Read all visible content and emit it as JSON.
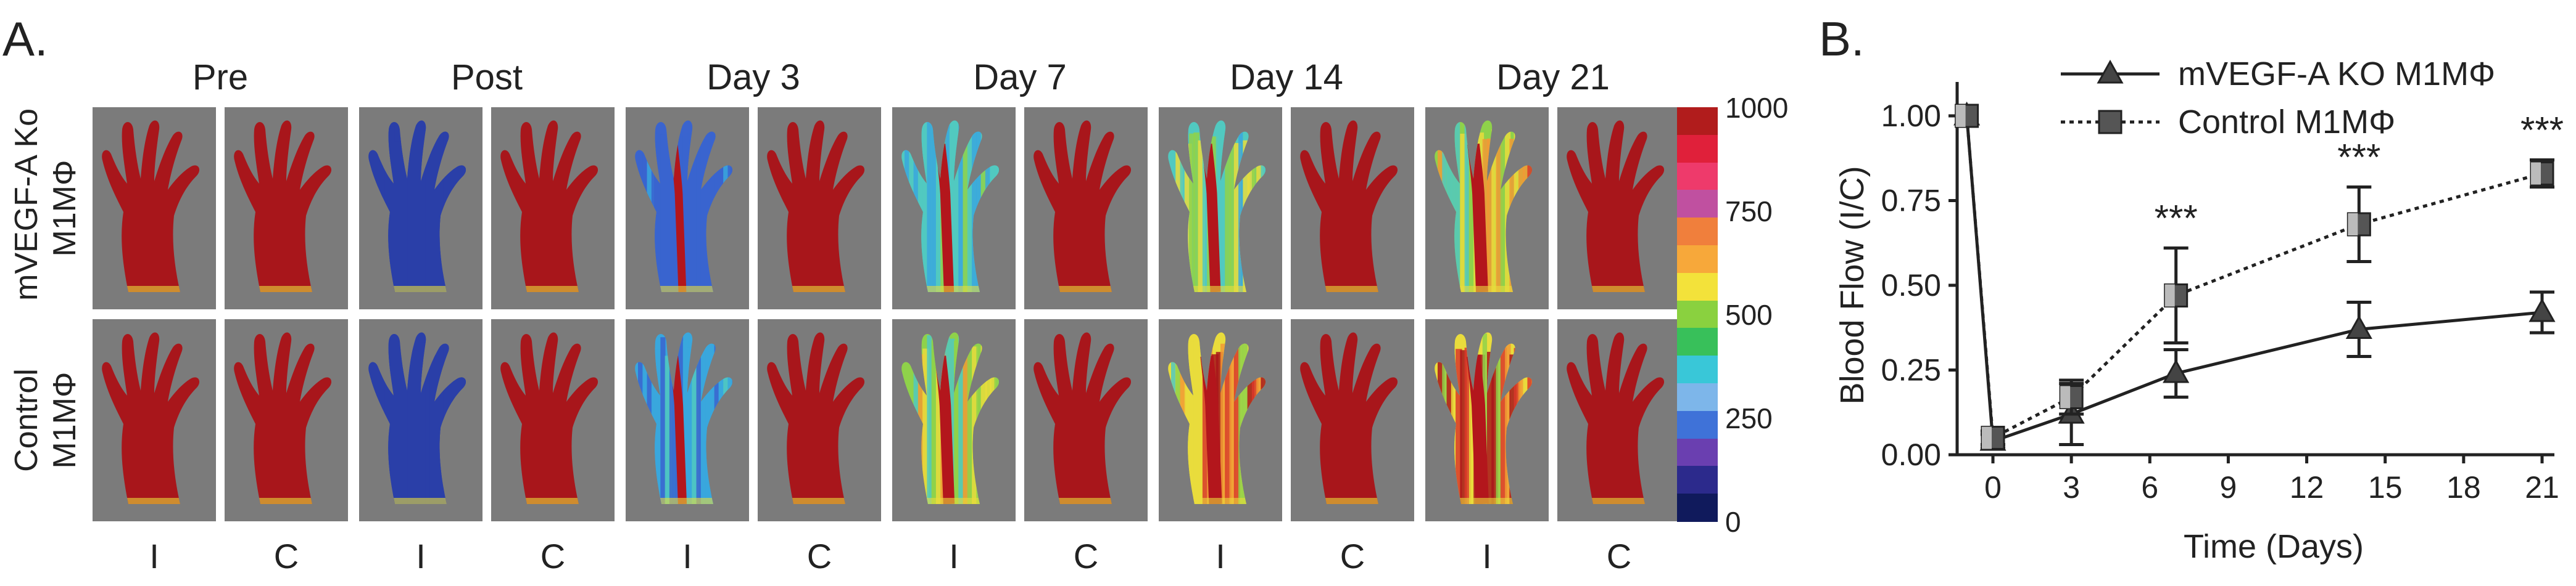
{
  "panel_a": {
    "letter": "A.",
    "columns": [
      "Pre",
      "Post",
      "Day 3",
      "Day 7",
      "Day 14",
      "Day 21"
    ],
    "rows": [
      {
        "label_line1": "mVEGF-A Ko",
        "label_line2": "M1MΦ"
      },
      {
        "label_line1": "Control",
        "label_line2": "M1MΦ"
      }
    ],
    "leg_labels": [
      "I",
      "C"
    ],
    "colorbar": {
      "ticks": [
        "1000",
        "750",
        "500",
        "250",
        "0"
      ],
      "colors": [
        "#b11c1c",
        "#e0203a",
        "#ee3a6b",
        "#c050a0",
        "#f07f3c",
        "#f7a83a",
        "#f3e23a",
        "#8ad13f",
        "#38c05a",
        "#39c7d8",
        "#7db6ea",
        "#3f72d8",
        "#6a3fb0",
        "#2c2a8c",
        "#101a5c"
      ]
    },
    "perfusion_levels": [
      [
        [
          1.0,
          1.0
        ],
        [
          0.05,
          1.0
        ],
        [
          0.2,
          1.0
        ],
        [
          0.45,
          1.0
        ],
        [
          0.5,
          1.0
        ],
        [
          0.7,
          1.0
        ]
      ],
      [
        [
          1.0,
          1.0
        ],
        [
          0.05,
          1.0
        ],
        [
          0.3,
          1.0
        ],
        [
          0.6,
          1.0
        ],
        [
          0.8,
          1.0
        ],
        [
          0.85,
          1.0
        ]
      ]
    ]
  },
  "panel_b": {
    "letter": "B."
  },
  "chart_data": {
    "type": "line",
    "xlabel": "Time (Days)",
    "ylabel": "Blood Flow (I/C)",
    "xlim": [
      -2,
      21
    ],
    "ylim": [
      0,
      1.1
    ],
    "xticks": [
      "0",
      "3",
      "6",
      "9",
      "12",
      "15",
      "18",
      "21"
    ],
    "yticks": [
      "0.00",
      "0.25",
      "0.50",
      "0.75",
      "1.00"
    ],
    "series": [
      {
        "name": "mVEGF-A KO M1MΦ",
        "marker": "triangle",
        "line": "solid",
        "x": [
          -1,
          0,
          3,
          7,
          14,
          21
        ],
        "y": [
          1.0,
          0.04,
          0.12,
          0.24,
          0.37,
          0.42
        ],
        "err": [
          0.0,
          0.02,
          0.09,
          0.07,
          0.08,
          0.06
        ]
      },
      {
        "name": "Control M1MΦ",
        "marker": "square",
        "line": "dotted",
        "x": [
          -1,
          0,
          3,
          7,
          14,
          21
        ],
        "y": [
          1.0,
          0.05,
          0.17,
          0.47,
          0.68,
          0.83
        ],
        "err": [
          0.0,
          0.02,
          0.05,
          0.14,
          0.11,
          0.04
        ]
      }
    ],
    "annotations": [
      {
        "x": 7,
        "text": "***"
      },
      {
        "x": 14,
        "text": "***"
      },
      {
        "x": 21,
        "text": "***"
      }
    ],
    "legend_position": "top"
  }
}
